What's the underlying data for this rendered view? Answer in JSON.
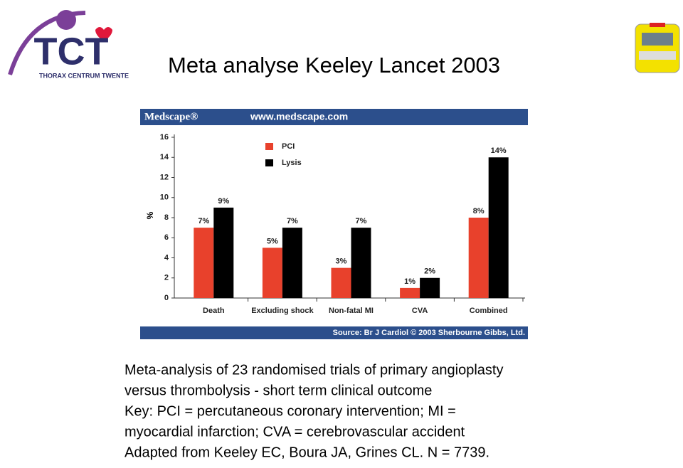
{
  "slide": {
    "title": "Meta analyse Keeley  Lancet 2003",
    "logo_letters": "TCT",
    "logo_subtitle": "THORAX CENTRUM TWENTE",
    "caption": [
      "Meta-analysis of 23 randomised trials of primary angioplasty",
      "versus thrombolysis - short term clinical outcome",
      "Key: PCI = percutaneous coronary intervention; MI =",
      "myocardial infarction; CVA = cerebrovascular accident",
      "Adapted from Keeley EC, Boura JA, Grines CL. N = 7739."
    ]
  },
  "chart_data": {
    "type": "bar",
    "brand": "Medscape®",
    "url": "www.medscape.com",
    "source": "Source: Br J Cardiol © 2003 Sherbourne Gibbs, Ltd.",
    "y_label": "%",
    "categories": [
      "Death",
      "Excluding shock",
      "Non-fatal MI",
      "CVA",
      "Combined"
    ],
    "series": [
      {
        "name": "PCI",
        "color": "#e8412c",
        "values": [
          7,
          5,
          3,
          1,
          8
        ],
        "value_labels": [
          "7%",
          "5%",
          "3%",
          "1%",
          "8%"
        ]
      },
      {
        "name": "Lysis",
        "color": "#000000",
        "values": [
          9,
          7,
          7,
          2,
          14
        ],
        "value_labels": [
          "9%",
          "7%",
          "7%",
          "2%",
          "14%"
        ]
      }
    ],
    "ylim": [
      0,
      16
    ],
    "yticks": [
      0,
      2,
      4,
      6,
      8,
      10,
      12,
      14,
      16
    ],
    "legend": "top-left"
  }
}
